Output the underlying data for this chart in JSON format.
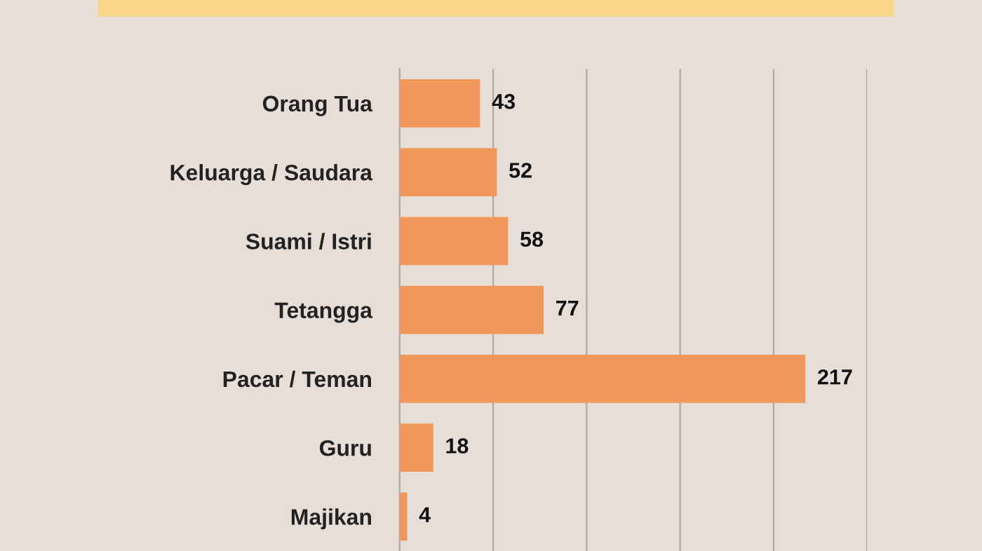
{
  "chart_data": {
    "type": "bar",
    "orientation": "horizontal",
    "categories": [
      "Orang Tua",
      "Keluarga / Saudara",
      "Suami / Istri",
      "Tetangga",
      "Pacar / Teman",
      "Guru",
      "Majikan"
    ],
    "values": [
      43,
      52,
      58,
      77,
      217,
      18,
      4
    ],
    "color": "#f0975c",
    "data_labels": true,
    "grid": "x",
    "tick_labels": "y",
    "xlim": [
      0,
      250
    ],
    "xticks": [
      {
        "value": 0,
        "label": null
      },
      {
        "value": 50,
        "label": null
      },
      {
        "value": 100,
        "label": null
      },
      {
        "value": 150,
        "label": null
      },
      {
        "value": 200,
        "label": null
      },
      {
        "value": 250,
        "label": null
      }
    ]
  }
}
